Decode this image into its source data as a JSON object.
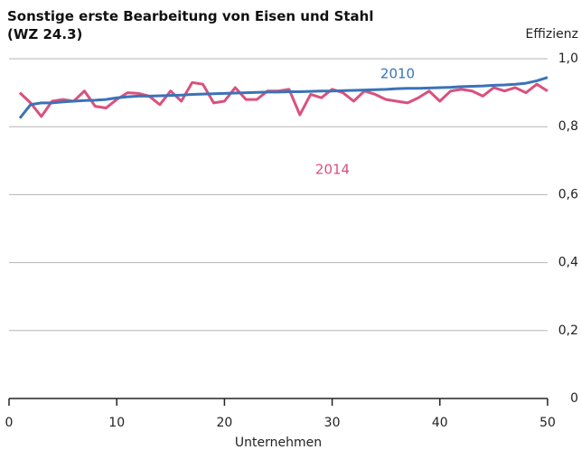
{
  "chart_data": {
    "type": "line",
    "title": "Sonstige erste Bearbeitung von Eisen und Stahl (WZ 24.3)",
    "x_label": "Unternehmen",
    "y_label": "Effizienz",
    "x": [
      1,
      2,
      3,
      4,
      5,
      6,
      7,
      8,
      9,
      10,
      11,
      12,
      13,
      14,
      15,
      16,
      17,
      18,
      19,
      20,
      21,
      22,
      23,
      24,
      25,
      26,
      27,
      28,
      29,
      30,
      31,
      32,
      33,
      34,
      35,
      36,
      37,
      38,
      39,
      40,
      41,
      42,
      43,
      44,
      45,
      46,
      47,
      48,
      49,
      50
    ],
    "series": [
      {
        "name": "2010",
        "color": "#3a73b8",
        "values": [
          0.825,
          0.865,
          0.87,
          0.87,
          0.873,
          0.875,
          0.877,
          0.878,
          0.88,
          0.885,
          0.888,
          0.89,
          0.89,
          0.891,
          0.892,
          0.893,
          0.895,
          0.896,
          0.897,
          0.898,
          0.899,
          0.9,
          0.901,
          0.902,
          0.902,
          0.903,
          0.903,
          0.904,
          0.905,
          0.905,
          0.906,
          0.907,
          0.908,
          0.909,
          0.91,
          0.912,
          0.913,
          0.913,
          0.914,
          0.915,
          0.916,
          0.918,
          0.919,
          0.92,
          0.922,
          0.923,
          0.925,
          0.928,
          0.935,
          0.945
        ]
      },
      {
        "name": "2014",
        "color": "#d9517d",
        "values": [
          0.9,
          0.87,
          0.83,
          0.875,
          0.88,
          0.875,
          0.905,
          0.86,
          0.855,
          0.88,
          0.9,
          0.898,
          0.89,
          0.865,
          0.905,
          0.875,
          0.93,
          0.925,
          0.87,
          0.875,
          0.915,
          0.88,
          0.88,
          0.905,
          0.905,
          0.91,
          0.835,
          0.895,
          0.885,
          0.91,
          0.9,
          0.875,
          0.905,
          0.895,
          0.88,
          0.875,
          0.87,
          0.885,
          0.905,
          0.875,
          0.905,
          0.91,
          0.905,
          0.89,
          0.915,
          0.905,
          0.915,
          0.9,
          0.925,
          0.905
        ]
      }
    ],
    "xlim": [
      0,
      50
    ],
    "xticks": [
      0,
      10,
      20,
      30,
      40,
      50
    ],
    "ylim": [
      0,
      1
    ],
    "yticks": [
      0,
      {
        "value": 0.2,
        "label": "0,2"
      },
      {
        "value": 0.4,
        "label": "0,4"
      },
      {
        "value": 0.6,
        "label": "0,6"
      },
      {
        "value": 0.8,
        "label": "0,8"
      },
      {
        "value": 1,
        "label": "1,0"
      }
    ],
    "grid": true
  }
}
